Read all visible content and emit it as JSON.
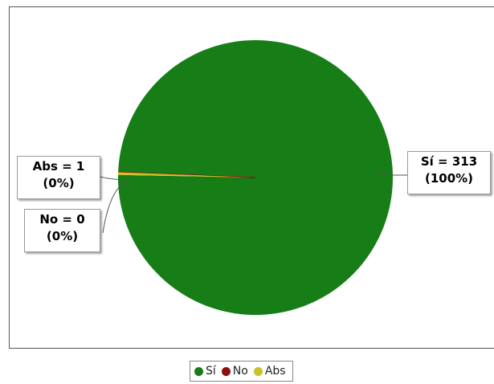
{
  "chart_data": {
    "type": "pie",
    "title": "",
    "categories": [
      "Sí",
      "No",
      "Abs"
    ],
    "values": [
      313,
      0,
      1
    ],
    "colors": [
      "#167d17",
      "#8b0f0f",
      "#c9c229"
    ],
    "slice_labels": [
      {
        "line1": "Sí = 313",
        "line2": "(100%)"
      },
      {
        "line1": "No = 0",
        "line2": "(0%)"
      },
      {
        "line1": "Abs = 1",
        "line2": "(0%)"
      }
    ],
    "legend": {
      "placement": "bottom-center",
      "entries": [
        "Sí",
        "No",
        "Abs"
      ]
    }
  }
}
